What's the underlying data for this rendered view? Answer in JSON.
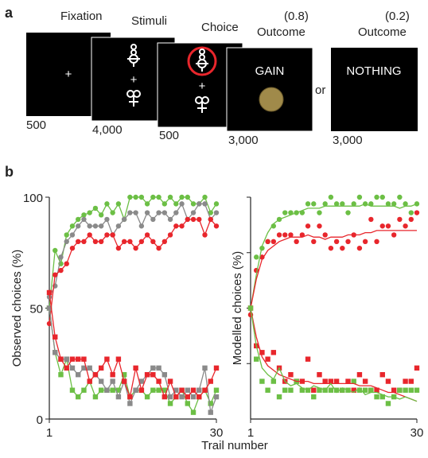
{
  "panel_a": {
    "label": "a",
    "fixation": "Fixation",
    "stimuli": "Stimuli",
    "choice": "Choice",
    "outcome_gain_prob": "(0.8)",
    "outcome_gain_title": "Outcome",
    "outcome_nothing_prob": "(0.2)",
    "outcome_nothing_title": "Outcome",
    "gain_text": "GAIN",
    "nothing_text": "NOTHING",
    "or_text": "or",
    "durations": [
      "500",
      "4,000",
      "500",
      "3,000",
      "3,000"
    ]
  },
  "panel_b_label": "b",
  "shared_xlabel": "Trail number",
  "chart_data": [
    {
      "type": "line",
      "ylabel": "Observed choices (%)",
      "xlim": [
        1,
        30
      ],
      "xticks": [
        1,
        30
      ],
      "ylim": [
        0,
        100
      ],
      "yticks": [
        0,
        50,
        100
      ],
      "x": [
        1,
        2,
        3,
        4,
        5,
        6,
        7,
        8,
        9,
        10,
        11,
        12,
        13,
        14,
        15,
        16,
        17,
        18,
        19,
        20,
        21,
        22,
        23,
        24,
        25,
        26,
        27,
        28,
        29,
        30
      ],
      "series": [
        {
          "color": "#6cbf45",
          "style": "line+circles",
          "values": [
            50,
            76,
            70,
            83,
            87,
            90,
            92,
            93,
            95,
            92,
            97,
            93,
            97,
            90,
            100,
            100,
            100,
            97,
            100,
            100,
            97,
            100,
            97,
            100,
            100,
            97,
            97,
            100,
            93,
            97
          ]
        },
        {
          "color": "#8a8a8a",
          "style": "line+circles",
          "values": [
            55,
            60,
            73,
            80,
            83,
            87,
            90,
            87,
            87,
            87,
            90,
            83,
            87,
            90,
            93,
            93,
            87,
            93,
            90,
            93,
            93,
            90,
            93,
            97,
            90,
            93,
            97,
            97,
            90,
            93
          ]
        },
        {
          "color": "#e8262c",
          "style": "line+circles",
          "values": [
            43,
            65,
            67,
            70,
            77,
            80,
            80,
            83,
            80,
            80,
            83,
            83,
            77,
            80,
            80,
            77,
            80,
            83,
            80,
            77,
            80,
            83,
            87,
            87,
            90,
            90,
            90,
            83,
            90,
            87
          ]
        },
        {
          "color": "#6cbf45",
          "style": "line+squares",
          "values": [
            50,
            30,
            20,
            27,
            13,
            10,
            13,
            17,
            10,
            13,
            13,
            13,
            13,
            20,
            10,
            13,
            13,
            10,
            13,
            13,
            13,
            7,
            10,
            13,
            7,
            3,
            10,
            13,
            7,
            13
          ]
        },
        {
          "color": "#8a8a8a",
          "style": "line+squares",
          "values": [
            50,
            30,
            27,
            27,
            23,
            20,
            23,
            23,
            20,
            17,
            13,
            17,
            10,
            17,
            7,
            13,
            17,
            20,
            23,
            23,
            20,
            10,
            13,
            10,
            13,
            10,
            13,
            23,
            3,
            10
          ]
        },
        {
          "color": "#e8262c",
          "style": "line+squares",
          "values": [
            57,
            37,
            27,
            23,
            27,
            27,
            27,
            17,
            20,
            23,
            27,
            20,
            27,
            17,
            10,
            23,
            13,
            20,
            20,
            17,
            10,
            17,
            10,
            13,
            10,
            13,
            10,
            13,
            17,
            23
          ]
        }
      ]
    },
    {
      "type": "line",
      "ylabel": "Modelled choices (%)",
      "xlim": [
        1,
        30
      ],
      "xticks": [
        1,
        30
      ],
      "ylim": [
        0,
        100
      ],
      "ytick_marks": [
        25,
        50,
        75,
        100
      ],
      "x": [
        1,
        2,
        3,
        4,
        5,
        6,
        7,
        8,
        9,
        10,
        11,
        12,
        13,
        14,
        15,
        16,
        17,
        18,
        19,
        20,
        21,
        22,
        23,
        24,
        25,
        26,
        27,
        28,
        29,
        30
      ],
      "series": [
        {
          "color": "#6cbf45",
          "style": "circles",
          "values": [
            47,
            73,
            77,
            80,
            87,
            90,
            93,
            93,
            93,
            93,
            97,
            97,
            93,
            97,
            100,
            97,
            97,
            93,
            97,
            100,
            97,
            97,
            100,
            100,
            97,
            97,
            100,
            97,
            93,
            97
          ]
        },
        {
          "color": "#e8262c",
          "style": "circles",
          "values": [
            47,
            67,
            73,
            80,
            80,
            83,
            83,
            83,
            80,
            83,
            87,
            80,
            87,
            83,
            77,
            80,
            77,
            80,
            83,
            77,
            80,
            90,
            80,
            87,
            87,
            83,
            90,
            87,
            90,
            93
          ]
        },
        {
          "color": "#6cbf45",
          "style": "line",
          "values": [
            50,
            65,
            78,
            84,
            88,
            90,
            91,
            92,
            93,
            94,
            95,
            95,
            95,
            96,
            96,
            96,
            96,
            96,
            96,
            96,
            97,
            96,
            96,
            96,
            96,
            96,
            95,
            96,
            96,
            97
          ]
        },
        {
          "color": "#e8262c",
          "style": "line",
          "values": [
            50,
            63,
            72,
            76,
            78,
            80,
            81,
            82,
            82,
            82,
            83,
            82,
            82,
            81,
            82,
            82,
            82,
            83,
            83,
            83,
            84,
            84,
            85,
            85,
            85,
            85,
            85,
            85,
            85,
            85
          ]
        },
        {
          "color": "#e8262c",
          "style": "squares",
          "values": [
            50,
            33,
            30,
            27,
            30,
            23,
            17,
            20,
            17,
            17,
            27,
            13,
            20,
            17,
            17,
            17,
            13,
            17,
            13,
            20,
            17,
            13,
            13,
            20,
            17,
            13,
            13,
            17,
            17,
            23
          ]
        },
        {
          "color": "#6cbf45",
          "style": "squares",
          "values": [
            50,
            27,
            17,
            13,
            17,
            10,
            13,
            13,
            17,
            13,
            13,
            10,
            13,
            13,
            13,
            13,
            13,
            13,
            17,
            13,
            13,
            13,
            10,
            10,
            7,
            10,
            13,
            13,
            13,
            13
          ]
        },
        {
          "color": "#e8262c",
          "style": "line",
          "values": [
            50,
            37,
            28,
            24,
            22,
            20,
            19,
            18,
            17,
            17,
            17,
            16,
            16,
            16,
            16,
            16,
            16,
            16,
            16,
            15,
            15,
            15,
            14,
            13,
            12,
            12,
            11,
            10,
            9,
            8
          ]
        },
        {
          "color": "#6cbf45",
          "style": "line",
          "values": [
            50,
            33,
            23,
            20,
            18,
            23,
            17,
            15,
            16,
            14,
            13,
            15,
            14,
            13,
            16,
            12,
            14,
            13,
            12,
            14,
            11,
            12,
            12,
            11,
            10,
            10,
            9,
            10,
            9,
            8
          ]
        }
      ]
    }
  ]
}
